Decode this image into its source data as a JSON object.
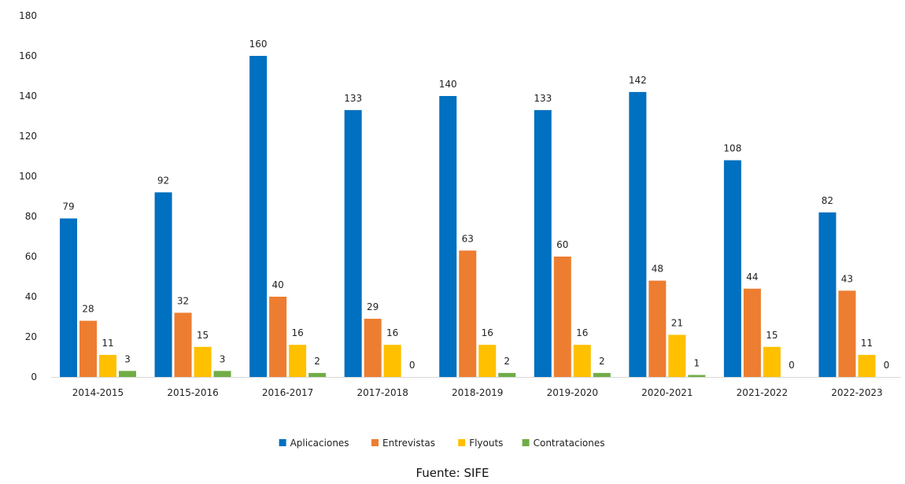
{
  "source_note": "Fuente: SIFE",
  "chart_data": {
    "type": "bar",
    "categories": [
      "2014-2015",
      "2015-2016",
      "2016-2017",
      "2017-2018",
      "2018-2019",
      "2019-2020",
      "2020-2021",
      "2021-2022",
      "2022-2023"
    ],
    "series": [
      {
        "name": "Aplicaciones",
        "color": "#0070c0",
        "values": [
          79,
          92,
          160,
          133,
          140,
          133,
          142,
          108,
          82
        ]
      },
      {
        "name": "Entrevistas",
        "color": "#ed7d31",
        "values": [
          28,
          32,
          40,
          29,
          63,
          60,
          48,
          44,
          43
        ]
      },
      {
        "name": "Flyouts",
        "color": "#ffc000",
        "values": [
          11,
          15,
          16,
          16,
          16,
          16,
          21,
          15,
          11
        ]
      },
      {
        "name": "Contrataciones",
        "color": "#70ad47",
        "values": [
          3,
          3,
          2,
          0,
          2,
          2,
          1,
          0,
          0
        ]
      }
    ],
    "ylim": [
      0,
      180
    ],
    "yticks": [
      0,
      20,
      40,
      60,
      80,
      100,
      120,
      140,
      160,
      180
    ],
    "grid": false,
    "legend_position": "bottom",
    "data_labels": true
  }
}
